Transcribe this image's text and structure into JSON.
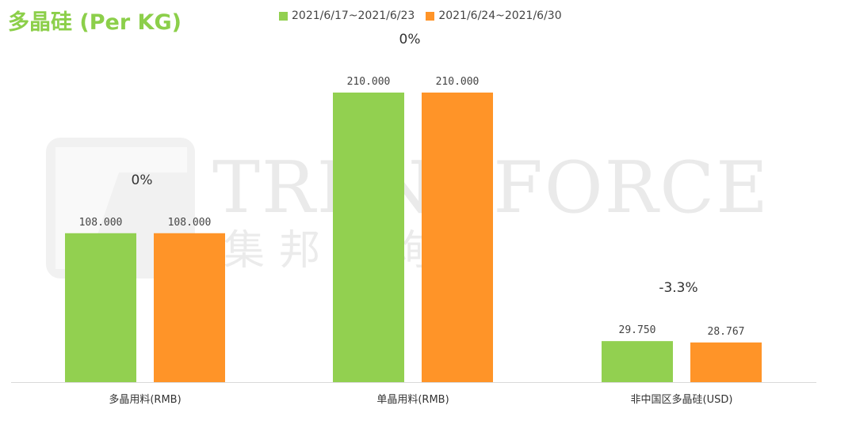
{
  "title": "多晶硅 (Per KG)",
  "legend": [
    {
      "label": "2021/6/17~2021/6/23",
      "color": "#92d050"
    },
    {
      "label": "2021/6/24~2021/6/30",
      "color": "#ff9428"
    }
  ],
  "watermark": {
    "brand": "TRENDFORCE",
    "chinese": "集邦咨询"
  },
  "colors": {
    "series1": "#92d050",
    "series2": "#ff9428",
    "axis": "#d9d9d9",
    "title": "#8ccf4a"
  },
  "chart_data": {
    "type": "bar",
    "title": "多晶硅 (Per KG)",
    "categories": [
      "多晶用料(RMB)",
      "单晶用料(RMB)",
      "非中国区多晶硅(USD)"
    ],
    "series": [
      {
        "name": "2021/6/17~2021/6/23",
        "values": [
          108.0,
          210.0,
          29.75
        ],
        "labels": [
          "108.000",
          "210.000",
          "29.750"
        ]
      },
      {
        "name": "2021/6/24~2021/6/30",
        "values": [
          108.0,
          210.0,
          28.767
        ],
        "labels": [
          "108.000",
          "210.000",
          "28.767"
        ]
      }
    ],
    "change_labels": [
      "0%",
      "0%",
      "-3.3%"
    ],
    "ylim": [
      0,
      210
    ],
    "grid": false,
    "legend_position": "top",
    "xlabel": "",
    "ylabel": ""
  }
}
